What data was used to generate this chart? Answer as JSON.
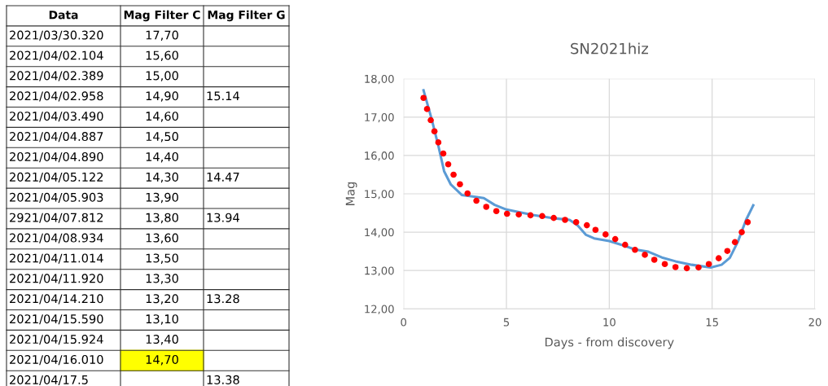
{
  "chart_data": {
    "type": "line",
    "title": "SN2021hiz",
    "xlabel": "Days - from discovery",
    "ylabel": "Mag",
    "xlim": [
      0,
      20
    ],
    "xticks": [
      0,
      5,
      10,
      15,
      20
    ],
    "ylim": [
      12,
      18
    ],
    "yticks": [
      {
        "value": 12,
        "label": "12,00"
      },
      {
        "value": 13,
        "label": "13,00"
      },
      {
        "value": 14,
        "label": "14,00"
      },
      {
        "value": 15,
        "label": "15,00"
      },
      {
        "value": 16,
        "label": "16,00"
      },
      {
        "value": 17,
        "label": "17,00"
      },
      {
        "value": 18,
        "label": "18,00"
      }
    ],
    "grid": true,
    "series": [
      {
        "color": "#5b9bd5",
        "marker": "none",
        "line_style": "solid",
        "x": [
          0.97,
          1.37,
          1.7,
          1.97,
          2.3,
          2.83,
          3.5,
          3.9,
          4.43,
          5.0,
          5.62,
          6.29,
          7.35,
          8.07,
          8.47,
          8.87,
          9.26,
          10.0,
          10.71,
          11.24,
          11.9,
          12.56,
          13.22,
          14.01,
          14.93,
          15.46,
          15.86,
          16.25,
          16.65,
          17.0
        ],
        "values": [
          17.7,
          16.94,
          16.23,
          15.59,
          15.24,
          14.97,
          14.92,
          14.89,
          14.71,
          14.59,
          14.52,
          14.45,
          14.36,
          14.32,
          14.17,
          13.93,
          13.84,
          13.77,
          13.65,
          13.55,
          13.49,
          13.34,
          13.24,
          13.15,
          13.08,
          13.15,
          13.33,
          13.75,
          14.32,
          14.7
        ]
      },
      {
        "type": "scatter",
        "color": "#ff0000",
        "marker": "circle",
        "x": [
          0.97,
          1.14,
          1.32,
          1.5,
          1.69,
          1.93,
          2.17,
          2.43,
          2.74,
          3.11,
          3.54,
          4.02,
          4.51,
          5.03,
          5.6,
          6.17,
          6.74,
          7.3,
          7.85,
          8.39,
          8.91,
          9.33,
          9.82,
          10.29,
          10.77,
          11.25,
          11.73,
          12.19,
          12.7,
          13.22,
          13.77,
          14.34,
          14.84,
          15.32,
          15.74,
          16.11,
          16.44,
          16.73
        ],
        "values": [
          17.5,
          17.21,
          16.92,
          16.63,
          16.34,
          16.05,
          15.77,
          15.5,
          15.25,
          15.01,
          14.82,
          14.66,
          14.55,
          14.48,
          14.46,
          14.44,
          14.42,
          14.37,
          14.32,
          14.26,
          14.18,
          14.06,
          13.94,
          13.82,
          13.67,
          13.54,
          13.41,
          13.28,
          13.17,
          13.09,
          13.06,
          13.08,
          13.17,
          13.32,
          13.51,
          13.74,
          14.0,
          14.26
        ]
      }
    ],
    "annotations": [
      "Data",
      "Mag Filter C",
      "Mag Filter G",
      "2021/03/30.320",
      "17,70",
      null,
      "2021/04/02.104",
      "15,60",
      null,
      "2021/04/02.389",
      "15,00",
      null,
      "2021/04/02.958",
      "14,90",
      "15.14",
      "2021/04/03.490",
      "14,60",
      null,
      "2021/04/04.887",
      "14,50",
      null,
      "2021/04/04.890",
      "14,40",
      null,
      "2021/04/05.122",
      "14,30",
      "14.47",
      "2021/04/05.903",
      "13,90",
      null,
      "2921/04/07.812",
      "13,80",
      "13.94",
      "2021/04/08.934",
      "13,60",
      null,
      "2021/04/11.014",
      "13,50",
      null,
      "2021/04/11.920",
      "13,30",
      null,
      "2021/04/14.210",
      "13,20",
      "13.28",
      "2021/04/15.590",
      "13,10",
      null,
      "2021/04/15.924",
      "13,40",
      null,
      "2021/04/16.010",
      "14,70",
      null,
      "2021/04/17.5",
      null,
      "13.38"
    ]
  }
}
